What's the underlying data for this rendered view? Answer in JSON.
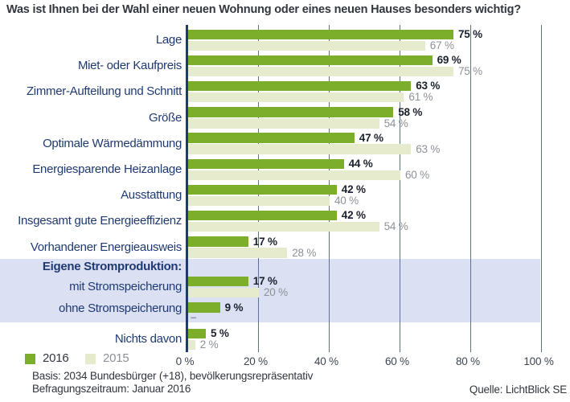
{
  "title": "Was ist Ihnen bei der Wahl einer neuen Wohnung oder eines neuen Hauses besonders wichtig?",
  "chart_data": {
    "type": "bar",
    "orientation": "horizontal",
    "unit": "%",
    "xlim": [
      0,
      100
    ],
    "x_ticks": [
      {
        "value": 0,
        "label": "0 %"
      },
      {
        "value": 20,
        "label": "20 %"
      },
      {
        "value": 40,
        "label": "40 %"
      },
      {
        "value": 60,
        "label": "60 %"
      },
      {
        "value": 80,
        "label": "80 %"
      },
      {
        "value": 100,
        "label": "100 %"
      }
    ],
    "categories": [
      "Lage",
      "Miet- oder Kaufpreis",
      "Zimmer-Aufteilung und Schnitt",
      "Größe",
      "Optimale Wärmedämmung",
      "Energiesparende Heizanlage",
      "Ausstattung",
      "Insgesamt gute Energieeffizienz",
      "Vorhandener Energieausweis",
      "Eigene Stromproduktion:",
      "mit Stromspeicherung",
      "ohne Stromspeicherung",
      "Nichts davon"
    ],
    "series": [
      {
        "name": "2016",
        "color": "#7dae2b",
        "values": [
          75,
          69,
          63,
          58,
          47,
          44,
          42,
          42,
          17,
          null,
          17,
          9,
          5
        ]
      },
      {
        "name": "2015",
        "color": "#e6ebce",
        "values": [
          67,
          75,
          61,
          54,
          63,
          60,
          40,
          54,
          28,
          null,
          20,
          null,
          2
        ]
      }
    ],
    "header_rows": [
      9
    ],
    "highlight_rows": [
      9,
      10,
      11
    ],
    "highlight_color": "#dbe0f2",
    "missing_value_text": "–",
    "grid": true,
    "legend_position": "bottom-left"
  },
  "legend": {
    "items": [
      {
        "label": "2016",
        "color": "#7dae2b"
      },
      {
        "label": "2015",
        "color": "#e6ebce"
      }
    ]
  },
  "footnotes": [
    "Basis: 2034 Bundesbürger (+18), bevölkerungsrepräsentativ",
    "Befragungszeitraum: Januar 2016"
  ],
  "source": "Quelle: LichtBlick SE"
}
